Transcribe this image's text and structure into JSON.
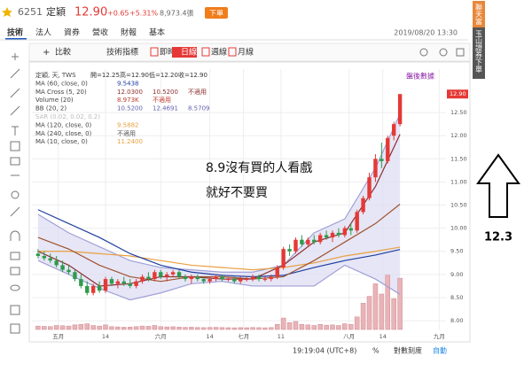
{
  "header": {
    "code": "6251",
    "name": "定穎",
    "price": "12.90",
    "change": "+0.65",
    "change_pct": "+5.31%",
    "volume": "8,973.4張",
    "order_button": "下單"
  },
  "tabs": [
    "技術",
    "法人",
    "資券",
    "營收",
    "財報",
    "基本"
  ],
  "timestamp": "2019/08/20 13:30",
  "side_tags": [
    "聯天富",
    "玉山證券下單"
  ],
  "toolbar": [
    "比較",
    "技術指標",
    "即時",
    "日線",
    "週線",
    "月線"
  ],
  "legend": [
    [
      "定穎, 天, TWS",
      "開=12.25",
      "高=12.90",
      "低=12.20",
      "收=12.90"
    ],
    [
      "MA (60, close, 0)",
      "9.5438"
    ],
    [
      "MA Cross (5, 20)",
      "12.0300",
      "10.5200",
      "不適用"
    ],
    [
      "Volume (20)",
      "8.973K",
      "不適用"
    ],
    [
      "BB (20, 2)",
      "10.5200",
      "12.4691",
      "8.5709"
    ],
    [
      "SAR (0.02, 0.02, 0.2)"
    ],
    [
      "MA (120, close, 0)",
      "9.5882"
    ],
    [
      "MA (240, close, 0)",
      "不適用"
    ],
    [
      "MA (10, close, 0)",
      "11.2400"
    ]
  ],
  "after_hours": "盤後數據",
  "chart_data": {
    "type": "candlestick",
    "x": [
      0,
      1,
      2,
      3,
      4,
      5,
      6,
      7,
      8,
      9,
      10,
      11,
      12,
      13,
      14,
      15,
      16,
      17,
      18,
      19,
      20,
      21,
      22,
      23,
      24,
      25,
      26,
      27,
      28,
      29,
      30,
      31,
      32,
      33,
      34,
      35,
      36,
      37,
      38,
      39,
      40,
      41,
      42,
      43,
      44,
      45,
      46,
      47,
      48,
      49,
      50,
      51,
      52,
      53,
      54,
      55,
      56,
      57,
      58,
      59
    ],
    "open": [
      9.45,
      9.4,
      9.35,
      9.3,
      9.2,
      9.1,
      9.05,
      8.9,
      8.75,
      8.6,
      8.75,
      8.65,
      8.9,
      8.8,
      8.85,
      8.8,
      8.75,
      8.85,
      8.95,
      8.9,
      9.05,
      8.95,
      9.0,
      9.05,
      8.95,
      8.9,
      8.95,
      8.9,
      8.85,
      8.9,
      8.95,
      8.9,
      8.9,
      8.85,
      8.9,
      8.9,
      8.95,
      8.9,
      8.9,
      8.95,
      9.15,
      9.55,
      9.5,
      9.75,
      9.65,
      9.75,
      9.7,
      9.85,
      9.8,
      9.9,
      9.85,
      10.0,
      9.95,
      10.35,
      10.65,
      11.1,
      11.5,
      11.45,
      12.0,
      12.25
    ],
    "high": [
      9.55,
      9.5,
      9.45,
      9.4,
      9.3,
      9.2,
      9.1,
      9.0,
      8.85,
      8.8,
      8.85,
      8.95,
      8.95,
      8.9,
      8.95,
      8.9,
      8.9,
      9.0,
      9.05,
      9.1,
      9.1,
      9.05,
      9.1,
      9.1,
      9.0,
      9.0,
      9.0,
      8.95,
      8.95,
      9.0,
      9.0,
      8.95,
      8.95,
      8.95,
      8.95,
      9.0,
      9.0,
      8.95,
      9.0,
      9.2,
      9.6,
      9.65,
      9.8,
      9.85,
      9.8,
      9.85,
      9.9,
      9.95,
      9.95,
      10.0,
      10.05,
      10.1,
      10.4,
      10.7,
      11.2,
      11.6,
      11.85,
      12.0,
      12.3,
      12.9
    ],
    "low": [
      9.35,
      9.3,
      9.25,
      9.15,
      9.05,
      9.0,
      8.85,
      8.7,
      8.55,
      8.55,
      8.6,
      8.6,
      8.75,
      8.7,
      8.75,
      8.7,
      8.7,
      8.8,
      8.85,
      8.85,
      8.9,
      8.85,
      8.95,
      8.9,
      8.85,
      8.8,
      8.85,
      8.8,
      8.8,
      8.85,
      8.85,
      8.85,
      8.8,
      8.8,
      8.85,
      8.85,
      8.85,
      8.85,
      8.85,
      8.9,
      9.1,
      9.4,
      9.45,
      9.6,
      9.6,
      9.65,
      9.65,
      9.75,
      9.7,
      9.8,
      9.8,
      9.85,
      9.9,
      10.3,
      10.6,
      11.0,
      11.3,
      11.4,
      11.9,
      12.2
    ],
    "close": [
      9.4,
      9.35,
      9.3,
      9.2,
      9.1,
      9.05,
      8.9,
      8.75,
      8.6,
      8.75,
      8.65,
      8.9,
      8.8,
      8.85,
      8.8,
      8.75,
      8.85,
      8.95,
      8.9,
      9.05,
      8.95,
      9.0,
      9.05,
      8.95,
      8.9,
      8.95,
      8.9,
      8.85,
      8.9,
      8.95,
      8.9,
      8.9,
      8.85,
      8.9,
      8.9,
      8.95,
      8.9,
      8.9,
      8.95,
      9.15,
      9.55,
      9.5,
      9.75,
      9.65,
      9.75,
      9.7,
      9.85,
      9.8,
      9.9,
      9.85,
      10.0,
      9.95,
      10.35,
      10.65,
      11.1,
      11.5,
      11.45,
      11.95,
      12.25,
      12.9
    ],
    "volume": [
      600,
      550,
      500,
      700,
      650,
      600,
      800,
      900,
      1000,
      700,
      600,
      800,
      500,
      450,
      400,
      420,
      500,
      600,
      550,
      700,
      500,
      450,
      480,
      420,
      380,
      400,
      350,
      330,
      360,
      380,
      340,
      320,
      300,
      330,
      310,
      350,
      330,
      300,
      340,
      900,
      2000,
      1200,
      1400,
      900,
      800,
      700,
      900,
      750,
      800,
      700,
      1000,
      900,
      2200,
      4600,
      5800,
      8000,
      6200,
      9500,
      5400,
      8973
    ],
    "vlim": [
      0,
      15500
    ],
    "up_color": "#e53935",
    "down_color": "#2e9b4e",
    "volume_color": "#e8b4b8",
    "lines": [
      {
        "color": "#a0a0d8",
        "x": [
          0,
          5,
          10,
          15,
          20,
          25,
          30,
          35,
          40,
          45,
          50,
          55,
          59
        ],
        "values": [
          10.3,
          9.9,
          9.6,
          9.3,
          9.15,
          9.1,
          9.05,
          9.05,
          9.2,
          9.9,
          10.2,
          11.3,
          12.47
        ]
      },
      {
        "color": "#a0a0d8",
        "x": [
          0,
          5,
          10,
          15,
          20,
          25,
          30,
          35,
          40,
          45,
          50,
          55,
          59
        ],
        "values": [
          9.3,
          9.0,
          8.7,
          8.45,
          8.6,
          8.8,
          8.85,
          8.75,
          8.75,
          8.75,
          9.2,
          8.9,
          8.57
        ]
      },
      {
        "color": "#e8a040",
        "x": [
          0,
          5,
          10,
          15,
          20,
          25,
          30,
          35,
          40,
          45,
          50,
          55,
          59
        ],
        "values": [
          9.5,
          9.5,
          9.45,
          9.4,
          9.3,
          9.2,
          9.15,
          9.1,
          9.15,
          9.25,
          9.4,
          9.5,
          9.59
        ]
      },
      {
        "color": "#1f3fa0",
        "x": [
          0,
          5,
          10,
          15,
          20,
          25,
          30,
          35,
          40,
          45,
          50,
          55,
          59
        ],
        "values": [
          10.4,
          10.1,
          9.8,
          9.45,
          9.2,
          9.05,
          8.98,
          8.95,
          8.98,
          9.15,
          9.3,
          9.42,
          9.54
        ]
      },
      {
        "color": "#a0522d",
        "x": [
          0,
          5,
          10,
          15,
          20,
          25,
          30,
          35,
          40,
          45,
          50,
          55,
          59
        ],
        "values": [
          9.8,
          9.55,
          9.2,
          8.95,
          8.85,
          8.95,
          8.95,
          8.9,
          8.95,
          9.3,
          9.7,
          10.1,
          10.52
        ]
      },
      {
        "color": "#8b2f2f",
        "x": [
          0,
          5,
          10,
          15,
          20,
          25,
          30,
          35,
          40,
          45,
          50,
          55,
          59
        ],
        "values": [
          9.5,
          9.2,
          8.75,
          8.8,
          8.95,
          8.95,
          8.9,
          8.9,
          9.2,
          9.7,
          9.9,
          10.9,
          12.03
        ]
      }
    ],
    "ylim": [
      7.81,
      13.44
    ],
    "yticks": [
      {
        "value": 8,
        "label": "8.00"
      },
      {
        "value": 8.5,
        "label": "8.50"
      },
      {
        "value": 9,
        "label": "9.00"
      },
      {
        "value": 9.5,
        "label": "9.50"
      },
      {
        "value": 10,
        "label": "10.00"
      },
      {
        "value": 10.5,
        "label": "10.50"
      },
      {
        "value": 11,
        "label": "11.00"
      },
      {
        "value": 11.5,
        "label": "11.50"
      },
      {
        "value": 12,
        "label": "12.00"
      },
      {
        "value": 12.5,
        "label": "12.50"
      }
    ],
    "xlim": [
      -1,
      66.5
    ],
    "xticks": [
      {
        "value": 3.3,
        "label": "五月"
      },
      {
        "value": 11,
        "label": "14"
      },
      {
        "value": 20,
        "label": "六月"
      },
      {
        "value": 28,
        "label": "14"
      },
      {
        "value": 33.5,
        "label": "七月"
      },
      {
        "value": 39.6,
        "label": "11"
      },
      {
        "value": 50.7,
        "label": "八月"
      },
      {
        "value": 56.2,
        "label": "14"
      },
      {
        "value": 65.4,
        "label": "九月"
      }
    ],
    "last_price": {
      "value": 12.9,
      "label": "12.90"
    },
    "grid": true
  },
  "annotations": [
    "8.9沒有買的人看戲",
    "就好不要買"
  ],
  "arrow_label": "12.3",
  "status": {
    "time": "19:19:04 (UTC+8)",
    "percent": "%",
    "log": "對數刻度",
    "auto": "自動"
  }
}
